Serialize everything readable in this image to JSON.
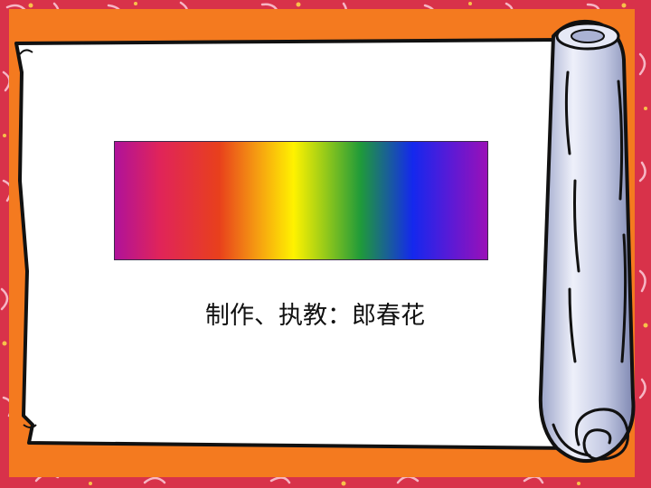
{
  "slide": {
    "author_line": "制作、执教：郎春花"
  },
  "spectrum": {
    "stops": [
      {
        "color": "#b0129a",
        "pos": 0
      },
      {
        "color": "#e0245a",
        "pos": 0.12
      },
      {
        "color": "#e8401c",
        "pos": 0.28
      },
      {
        "color": "#f59a12",
        "pos": 0.38
      },
      {
        "color": "#fff200",
        "pos": 0.48
      },
      {
        "color": "#9ccc18",
        "pos": 0.56
      },
      {
        "color": "#1f9a3a",
        "pos": 0.66
      },
      {
        "color": "#1428ee",
        "pos": 0.8
      },
      {
        "color": "#5a1ad6",
        "pos": 0.9
      },
      {
        "color": "#9a10b8",
        "pos": 1
      }
    ]
  },
  "colors": {
    "background_red": "#d8324a",
    "frame_orange": "#f47a1f",
    "paper": "#ffffff",
    "scroll_silver": "#c9cfe6",
    "outline": "#111111"
  }
}
